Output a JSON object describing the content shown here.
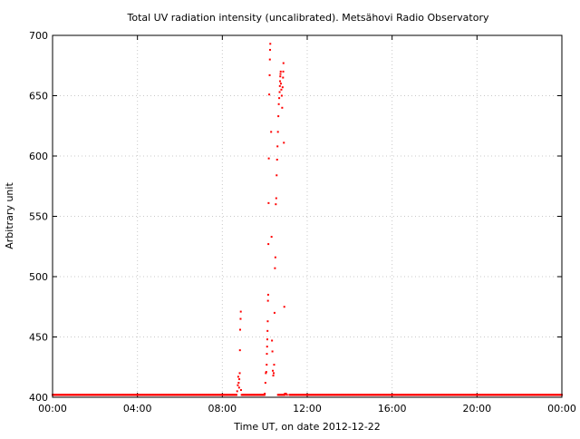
{
  "chart_data": {
    "type": "scatter",
    "title": "Total UV radiation intensity (uncalibrated). Metsähovi Radio Observatory",
    "xlabel": "Time UT, on date 2012-12-22",
    "ylabel": "Arbitrary unit",
    "x_unit": "hours",
    "xlim": [
      0,
      24
    ],
    "ylim": [
      400,
      700
    ],
    "x_ticks": [
      0,
      4,
      8,
      12,
      16,
      20,
      24
    ],
    "x_tick_labels": [
      "00:00",
      "04:00",
      "08:00",
      "12:00",
      "16:00",
      "20:00",
      "00:00"
    ],
    "y_ticks": [
      400,
      450,
      500,
      550,
      600,
      650,
      700
    ],
    "y_tick_labels": [
      "400",
      "450",
      "500",
      "550",
      "600",
      "650",
      "700"
    ],
    "grid": true,
    "series_color": "#ff0000",
    "baseline": {
      "value": 402,
      "x_start": 0,
      "x_end": 24,
      "step": 0.03,
      "gaps": [
        [
          8.7,
          8.9
        ],
        [
          10.0,
          10.6
        ],
        [
          10.95,
          11.15
        ]
      ]
    },
    "points": [
      [
        8.7,
        405
      ],
      [
        8.73,
        410
      ],
      [
        8.75,
        417
      ],
      [
        8.77,
        412
      ],
      [
        8.79,
        408
      ],
      [
        8.8,
        415
      ],
      [
        8.82,
        420
      ],
      [
        8.83,
        439
      ],
      [
        8.84,
        456
      ],
      [
        8.86,
        465
      ],
      [
        8.87,
        471
      ],
      [
        8.88,
        406
      ],
      [
        10.0,
        403
      ],
      [
        10.03,
        412
      ],
      [
        10.05,
        420
      ],
      [
        10.07,
        421
      ],
      [
        10.09,
        427
      ],
      [
        10.1,
        436
      ],
      [
        10.11,
        442
      ],
      [
        10.12,
        448
      ],
      [
        10.13,
        455
      ],
      [
        10.14,
        463
      ],
      [
        10.15,
        480
      ],
      [
        10.16,
        485
      ],
      [
        10.17,
        527
      ],
      [
        10.18,
        561
      ],
      [
        10.19,
        598
      ],
      [
        10.21,
        651
      ],
      [
        10.23,
        667
      ],
      [
        10.24,
        680
      ],
      [
        10.25,
        688
      ],
      [
        10.26,
        693
      ],
      [
        10.3,
        620
      ],
      [
        10.32,
        533
      ],
      [
        10.34,
        447
      ],
      [
        10.36,
        438
      ],
      [
        10.38,
        422
      ],
      [
        10.4,
        418
      ],
      [
        10.42,
        420
      ],
      [
        10.44,
        427
      ],
      [
        10.46,
        470
      ],
      [
        10.48,
        507
      ],
      [
        10.5,
        516
      ],
      [
        10.52,
        560
      ],
      [
        10.54,
        565
      ],
      [
        10.56,
        584
      ],
      [
        10.58,
        597
      ],
      [
        10.6,
        608
      ],
      [
        10.62,
        620
      ],
      [
        10.64,
        633
      ],
      [
        10.66,
        643
      ],
      [
        10.68,
        648
      ],
      [
        10.7,
        653
      ],
      [
        10.71,
        658
      ],
      [
        10.72,
        662
      ],
      [
        10.73,
        666
      ],
      [
        10.74,
        668
      ],
      [
        10.75,
        670
      ],
      [
        10.76,
        660
      ],
      [
        10.78,
        655
      ],
      [
        10.8,
        650
      ],
      [
        10.82,
        640
      ],
      [
        10.84,
        657
      ],
      [
        10.86,
        665
      ],
      [
        10.87,
        670
      ],
      [
        10.88,
        677
      ],
      [
        10.9,
        611
      ],
      [
        10.92,
        475
      ],
      [
        10.95,
        403
      ],
      [
        11.0,
        403
      ],
      [
        11.05,
        402
      ]
    ]
  }
}
